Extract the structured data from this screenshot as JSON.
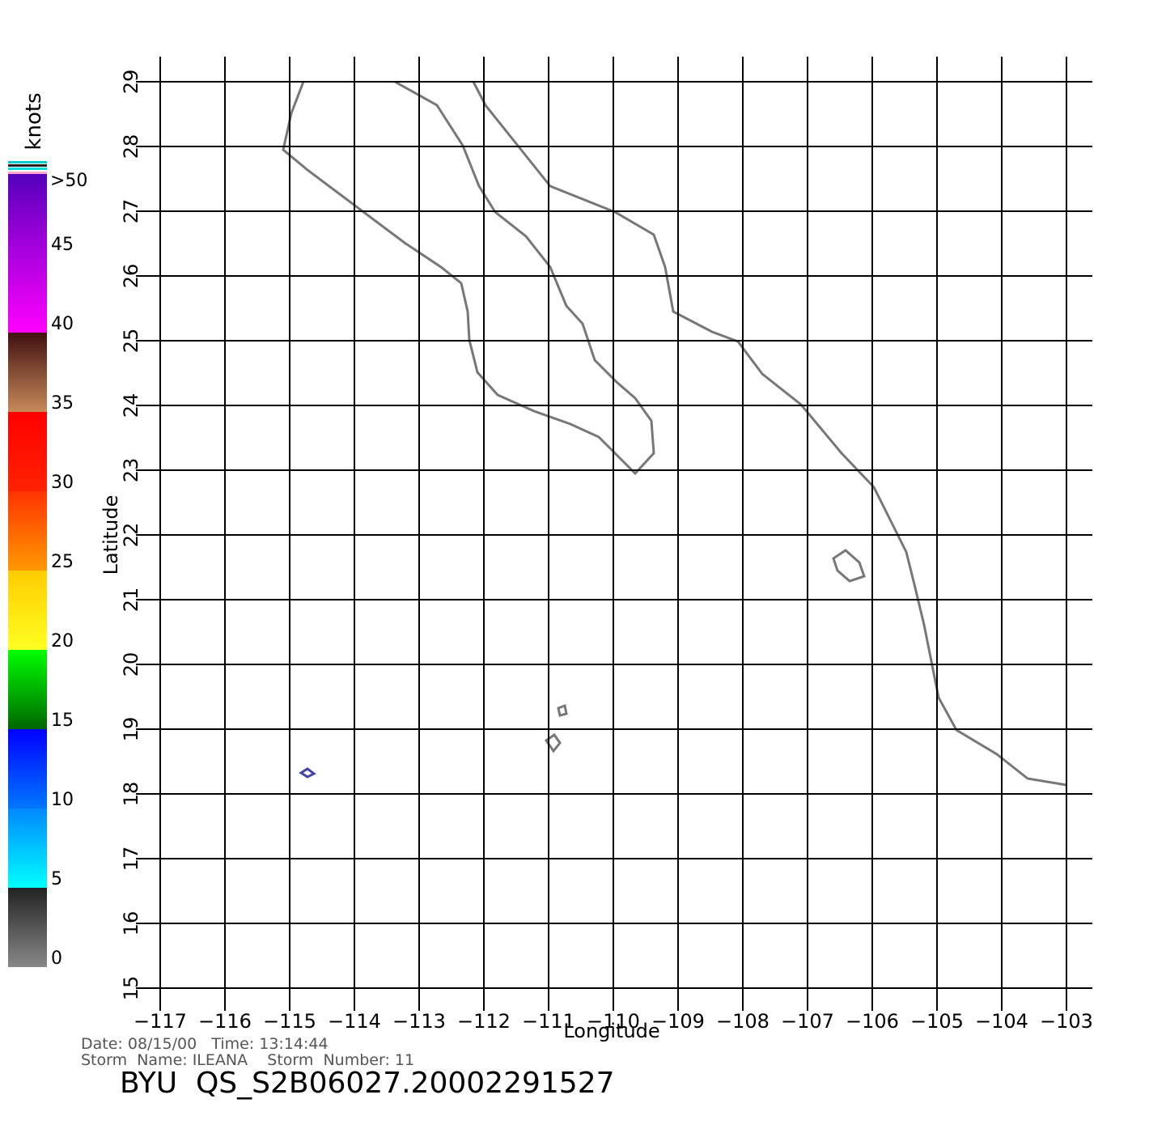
{
  "chart_data": {
    "type": "wind-map",
    "xlabel": "Longitude",
    "ylabel": "Latitude",
    "xlim": [
      -117,
      -103
    ],
    "ylim": [
      15,
      29
    ],
    "xticks": [
      {
        "value": -117,
        "label": "−117"
      },
      {
        "value": -116,
        "label": "−116"
      },
      {
        "value": -115,
        "label": "−115"
      },
      {
        "value": -114,
        "label": "−114"
      },
      {
        "value": -113,
        "label": "−113"
      },
      {
        "value": -112,
        "label": "−112"
      },
      {
        "value": -111,
        "label": "−111"
      },
      {
        "value": -110,
        "label": "−110"
      },
      {
        "value": -109,
        "label": "−109"
      },
      {
        "value": -108,
        "label": "−108"
      },
      {
        "value": -107,
        "label": "−107"
      },
      {
        "value": -106,
        "label": "−106"
      },
      {
        "value": -105,
        "label": "−105"
      },
      {
        "value": -104,
        "label": "−104"
      },
      {
        "value": -103,
        "label": "−103"
      }
    ],
    "yticks": [
      15,
      16,
      17,
      18,
      19,
      20,
      21,
      22,
      23,
      24,
      25,
      26,
      27,
      28,
      29
    ],
    "grid": true,
    "colorbar": {
      "label": "knots",
      "lim": [
        0,
        50
      ],
      "ticks": [
        0,
        5,
        10,
        15,
        20,
        25,
        30,
        35,
        40,
        45
      ],
      "top_label": ">50",
      "bands": [
        {
          "from": 0,
          "to": 5,
          "colors": [
            "#888888",
            "#222222"
          ]
        },
        {
          "from": 5,
          "to": 10,
          "colors": [
            "#00ffff",
            "#0088ff"
          ]
        },
        {
          "from": 10,
          "to": 15,
          "colors": [
            "#0077ff",
            "#0000ff"
          ]
        },
        {
          "from": 15,
          "to": 20,
          "colors": [
            "#006600",
            "#00ff00"
          ]
        },
        {
          "from": 20,
          "to": 25,
          "colors": [
            "#ffff22",
            "#ffcc00"
          ]
        },
        {
          "from": 25,
          "to": 30,
          "colors": [
            "#ff9900",
            "#ff3300"
          ]
        },
        {
          "from": 30,
          "to": 35,
          "colors": [
            "#ff2200",
            "#ff0000"
          ]
        },
        {
          "from": 35,
          "to": 40,
          "colors": [
            "#c88a5a",
            "#401010"
          ]
        },
        {
          "from": 40,
          "to": 50,
          "colors": [
            "#ff00ff",
            "#5500bb"
          ]
        }
      ]
    },
    "date_line": "Date: 08/15/00   Time: 13:14:44",
    "storm_line": "Storm  Name: ILEANA    Storm  Number: 11",
    "title": "BYU  QS_S2B06027.20002291527"
  }
}
